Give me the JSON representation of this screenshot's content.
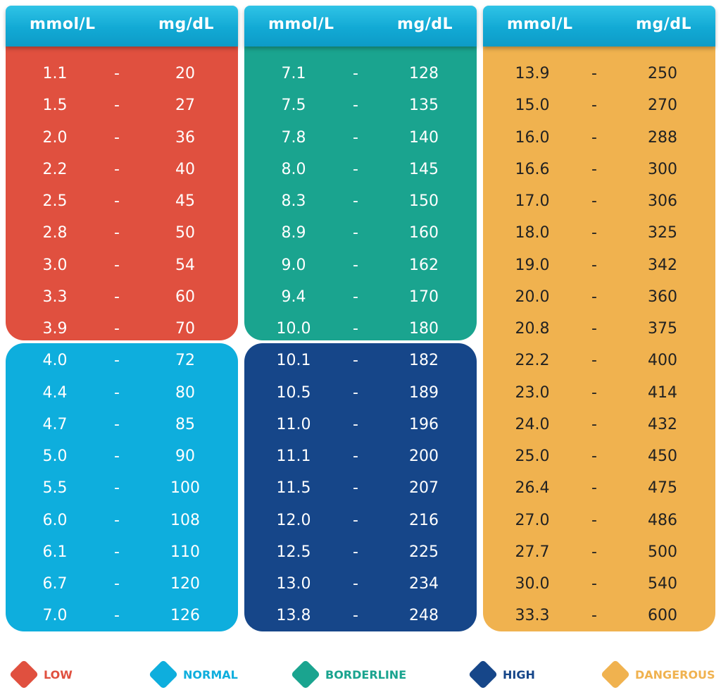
{
  "chart_data": {
    "type": "table",
    "headers": [
      "mmol/L",
      "mg/dL"
    ],
    "columns": [
      {
        "blocks": [
          {
            "category": "LOW",
            "color": "#e0503f",
            "rows": [
              [
                "1.1",
                "20"
              ],
              [
                "1.5",
                "27"
              ],
              [
                "2.0",
                "36"
              ],
              [
                "2.2",
                "40"
              ],
              [
                "2.5",
                "45"
              ],
              [
                "2.8",
                "50"
              ],
              [
                "3.0",
                "54"
              ],
              [
                "3.3",
                "60"
              ],
              [
                "3.9",
                "70"
              ]
            ]
          },
          {
            "category": "NORMAL",
            "color": "#0eaedd",
            "rows": [
              [
                "4.0",
                "72"
              ],
              [
                "4.4",
                "80"
              ],
              [
                "4.7",
                "85"
              ],
              [
                "5.0",
                "90"
              ],
              [
                "5.5",
                "100"
              ],
              [
                "6.0",
                "108"
              ],
              [
                "6.1",
                "110"
              ],
              [
                "6.7",
                "120"
              ],
              [
                "7.0",
                "126"
              ]
            ]
          }
        ]
      },
      {
        "blocks": [
          {
            "category": "BORDERLINE",
            "color": "#1aa48f",
            "rows": [
              [
                "7.1",
                "128"
              ],
              [
                "7.5",
                "135"
              ],
              [
                "7.8",
                "140"
              ],
              [
                "8.0",
                "145"
              ],
              [
                "8.3",
                "150"
              ],
              [
                "8.9",
                "160"
              ],
              [
                "9.0",
                "162"
              ],
              [
                "9.4",
                "170"
              ],
              [
                "10.0",
                "180"
              ]
            ]
          },
          {
            "category": "HIGH",
            "color": "#164689",
            "rows": [
              [
                "10.1",
                "182"
              ],
              [
                "10.5",
                "189"
              ],
              [
                "11.0",
                "196"
              ],
              [
                "11.1",
                "200"
              ],
              [
                "11.5",
                "207"
              ],
              [
                "12.0",
                "216"
              ],
              [
                "12.5",
                "225"
              ],
              [
                "13.0",
                "234"
              ],
              [
                "13.8",
                "248"
              ]
            ]
          }
        ]
      },
      {
        "blocks": [
          {
            "category": "DANGEROUS",
            "color": "#f0b24f",
            "rows": [
              [
                "13.9",
                "250"
              ],
              [
                "15.0",
                "270"
              ],
              [
                "16.0",
                "288"
              ],
              [
                "16.6",
                "300"
              ],
              [
                "17.0",
                "306"
              ],
              [
                "18.0",
                "325"
              ],
              [
                "19.0",
                "342"
              ],
              [
                "20.0",
                "360"
              ],
              [
                "20.8",
                "375"
              ],
              [
                "22.2",
                "400"
              ],
              [
                "23.0",
                "414"
              ],
              [
                "24.0",
                "432"
              ],
              [
                "25.0",
                "450"
              ],
              [
                "26.4",
                "475"
              ],
              [
                "27.0",
                "486"
              ],
              [
                "27.7",
                "500"
              ],
              [
                "30.0",
                "540"
              ],
              [
                "33.3",
                "600"
              ]
            ]
          }
        ]
      }
    ],
    "separator": "-",
    "legend": [
      {
        "label": "LOW",
        "color": "#e0503f",
        "text_color": "#e0503f"
      },
      {
        "label": "NORMAL",
        "color": "#0eaedd",
        "text_color": "#0eaedd"
      },
      {
        "label": "BORDERLINE",
        "color": "#1aa48f",
        "text_color": "#1aa48f"
      },
      {
        "label": "HIGH",
        "color": "#164689",
        "text_color": "#164689"
      },
      {
        "label": "DANGEROUS",
        "color": "#f0b24f",
        "text_color": "#f0b24f"
      }
    ],
    "text_color_light": "#ffffff",
    "text_color_dark": "#222222"
  }
}
